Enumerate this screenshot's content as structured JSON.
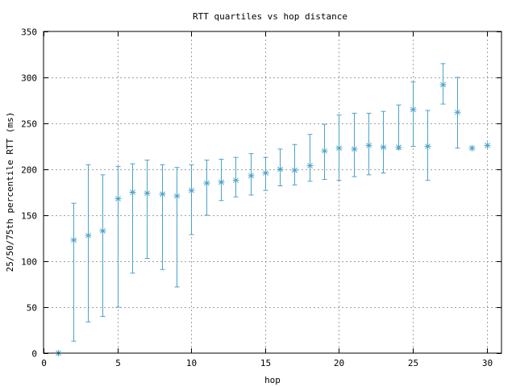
{
  "chart_data": {
    "type": "scatter",
    "title": "RTT quartiles vs hop distance",
    "xlabel": "hop",
    "ylabel": "25/50/75th percentile RTT (ms)",
    "xlim": [
      0,
      31
    ],
    "ylim": [
      0,
      350
    ],
    "xticks": [
      0,
      5,
      10,
      15,
      20,
      25,
      30
    ],
    "yticks": [
      0,
      50,
      100,
      150,
      200,
      250,
      300,
      350
    ],
    "grid": true,
    "series_color": "#4aa3c8",
    "series": [
      {
        "marker": "star",
        "errorbars": true,
        "points": [
          {
            "hop": 1,
            "p25": 0,
            "median": 0,
            "p75": 0
          },
          {
            "hop": 2,
            "p25": 13,
            "median": 123,
            "p75": 163
          },
          {
            "hop": 3,
            "p25": 34,
            "median": 128,
            "p75": 205
          },
          {
            "hop": 4,
            "p25": 40,
            "median": 133,
            "p75": 194
          },
          {
            "hop": 5,
            "p25": 50,
            "median": 168,
            "p75": 203
          },
          {
            "hop": 6,
            "p25": 87,
            "median": 175,
            "p75": 206
          },
          {
            "hop": 7,
            "p25": 103,
            "median": 174,
            "p75": 210
          },
          {
            "hop": 8,
            "p25": 91,
            "median": 173,
            "p75": 205
          },
          {
            "hop": 9,
            "p25": 72,
            "median": 171,
            "p75": 202
          },
          {
            "hop": 10,
            "p25": 129,
            "median": 177,
            "p75": 205
          },
          {
            "hop": 11,
            "p25": 150,
            "median": 185,
            "p75": 210
          },
          {
            "hop": 12,
            "p25": 166,
            "median": 186,
            "p75": 211
          },
          {
            "hop": 13,
            "p25": 170,
            "median": 188,
            "p75": 213
          },
          {
            "hop": 14,
            "p25": 172,
            "median": 193,
            "p75": 217
          },
          {
            "hop": 15,
            "p25": 177,
            "median": 196,
            "p75": 213
          },
          {
            "hop": 16,
            "p25": 182,
            "median": 200,
            "p75": 222
          },
          {
            "hop": 17,
            "p25": 183,
            "median": 199,
            "p75": 227
          },
          {
            "hop": 18,
            "p25": 187,
            "median": 204,
            "p75": 238
          },
          {
            "hop": 19,
            "p25": 189,
            "median": 220,
            "p75": 249
          },
          {
            "hop": 20,
            "p25": 188,
            "median": 223,
            "p75": 259
          },
          {
            "hop": 21,
            "p25": 192,
            "median": 222,
            "p75": 261
          },
          {
            "hop": 22,
            "p25": 194,
            "median": 226,
            "p75": 261
          },
          {
            "hop": 23,
            "p25": 196,
            "median": 224,
            "p75": 263
          },
          {
            "hop": 24,
            "p25": 222,
            "median": 224,
            "p75": 270
          },
          {
            "hop": 25,
            "p25": 225,
            "median": 265,
            "p75": 295
          },
          {
            "hop": 26,
            "p25": 188,
            "median": 225,
            "p75": 264
          },
          {
            "hop": 27,
            "p25": 271,
            "median": 292,
            "p75": 315
          },
          {
            "hop": 28,
            "p25": 223,
            "median": 262,
            "p75": 300
          },
          {
            "hop": 29,
            "p25": 223,
            "median": 223,
            "p75": 223
          },
          {
            "hop": 30,
            "p25": 226,
            "median": 226,
            "p75": 226
          }
        ]
      }
    ]
  }
}
